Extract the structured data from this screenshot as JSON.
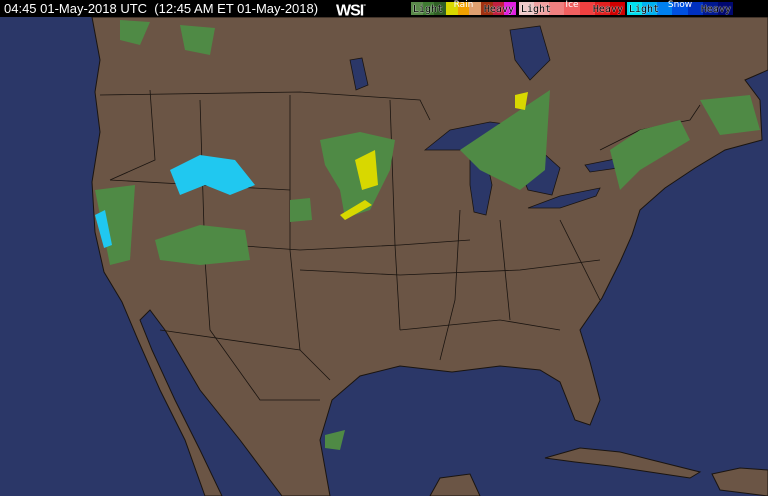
{
  "header": {
    "timestamp": "04:45 01-May-2018 UTC  (12:45 AM ET 01-May-2018)",
    "logo": "WSI",
    "logo_mark": "°"
  },
  "legend": [
    {
      "title": "Rain",
      "light": "Light",
      "heavy": "Heavy",
      "colors": [
        "#5a8a4a",
        "#3f7a32",
        "#2f5e25",
        "#d8d800",
        "#f0a000",
        "#e0a070",
        "#a03010",
        "#c02040",
        "#e020e0"
      ]
    },
    {
      "title": "Ice",
      "light": "Light",
      "heavy": "Heavy",
      "colors": [
        "#f0c8c8",
        "#f0a0a0",
        "#f08080",
        "#f06060",
        "#f04040",
        "#e02020",
        "#d00000"
      ]
    },
    {
      "title": "Snow",
      "light": "Light",
      "heavy": "Heavy",
      "colors": [
        "#00e0f0",
        "#00b0f0",
        "#0080f0",
        "#0050e0",
        "#0030c0",
        "#001890",
        "#000870"
      ]
    }
  ],
  "colors": {
    "land": "#6b5545",
    "water": "#2b3768",
    "borders": "#1a1410",
    "rain_light": "#4f8a45",
    "snow_light": "#20c8f0"
  }
}
